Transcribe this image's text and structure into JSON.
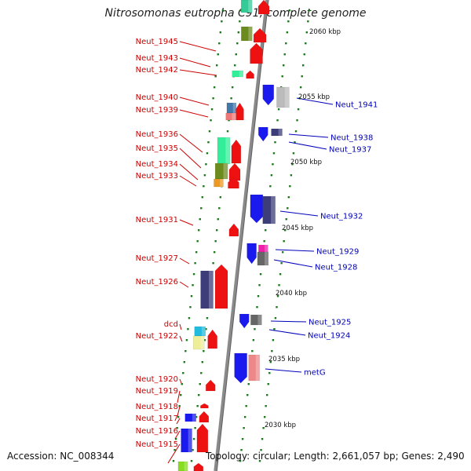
{
  "title": "Nitrosomonas eutropha C91, complete genome",
  "footer": {
    "accession": "Accession: NC_008344",
    "topology": "Topology: circular; Length: 2,661,057 bp; Genes: 2,490"
  },
  "colors": {
    "left_label": "#cc0000",
    "right_label": "#0000bb",
    "backbone": "#8a8a8a"
  },
  "scale_marks": [
    {
      "label": "2060 kbp"
    },
    {
      "label": "2055 kbp"
    },
    {
      "label": "2050 kbp"
    },
    {
      "label": "2045 kbp"
    },
    {
      "label": "2040 kbp"
    },
    {
      "label": "2035 kbp"
    },
    {
      "label": "2030 kbp"
    }
  ],
  "left_labels": [
    "Neut_1945",
    "Neut_1943",
    "Neut_1942",
    "Neut_1940",
    "Neut_1939",
    "Neut_1936",
    "Neut_1935",
    "Neut_1934",
    "Neut_1933",
    "Neut_1931",
    "Neut_1927",
    "Neut_1926",
    "dcd",
    "Neut_1922",
    "Neut_1920",
    "Neut_1919",
    "Neut_1918",
    "Neut_1917",
    "Neut_1916",
    "Neut_1915"
  ],
  "right_labels": [
    "Neut_1941",
    "Neut_1938",
    "Neut_1937",
    "Neut_1932",
    "Neut_1929",
    "Neut_1928",
    "Neut_1925",
    "Neut_1924",
    "metG"
  ]
}
